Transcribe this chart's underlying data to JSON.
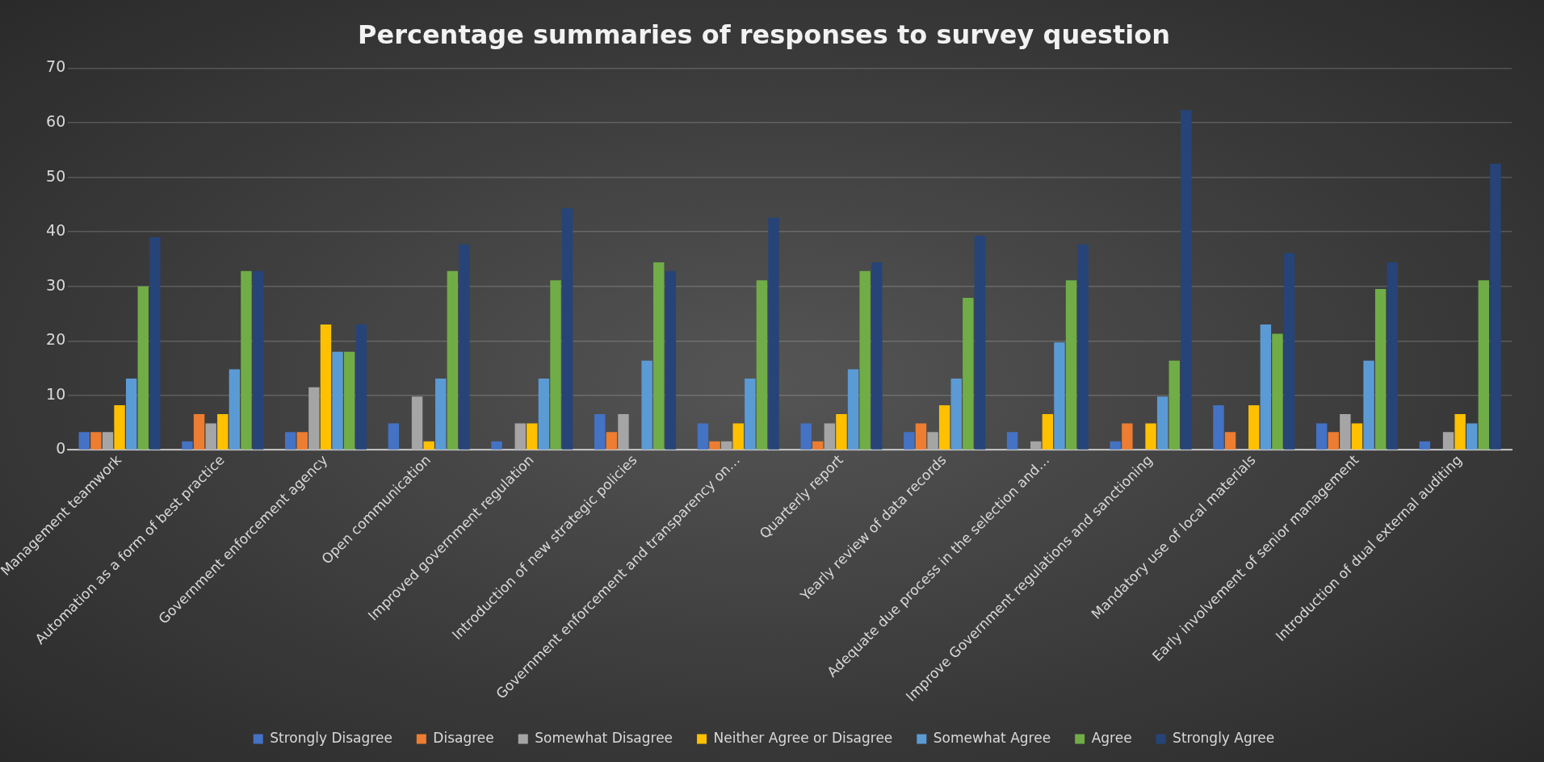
{
  "chart_data": {
    "type": "bar",
    "title": "Percentage summaries of responses to survey question",
    "categories": [
      "Management teamwork",
      "Automation as a form of best practice",
      "Government enforcement agency",
      "Open communication",
      "Improved government regulation",
      "Introduction of new strategic policies",
      "Government enforcement and transparency on…",
      "Quarterly report",
      "Yearly review of data records",
      "Adequate due process in the selection and…",
      "Improve Government regulations and sanctioning",
      "Mandatory use of local materials",
      "Early involvement of senior management",
      "Introduction of dual external auditing"
    ],
    "series": [
      {
        "name": "Strongly Disagree",
        "color": "#4472c4",
        "values": [
          3.3,
          1.6,
          3.3,
          4.9,
          1.6,
          6.6,
          4.9,
          4.9,
          3.3,
          3.3,
          1.6,
          8.2,
          4.9,
          1.6
        ]
      },
      {
        "name": "Disagree",
        "color": "#ed7d31",
        "values": [
          3.3,
          6.6,
          3.3,
          0,
          0,
          3.3,
          1.6,
          1.6,
          4.9,
          0,
          4.9,
          3.3,
          3.3,
          0
        ]
      },
      {
        "name": "Somewhat Disagree",
        "color": "#a5a5a5",
        "values": [
          3.3,
          4.9,
          11.5,
          9.8,
          4.9,
          6.6,
          1.6,
          4.9,
          3.3,
          1.6,
          0,
          0,
          6.6,
          3.3
        ]
      },
      {
        "name": "Neither Agree or Disagree",
        "color": "#ffc000",
        "values": [
          8.2,
          6.6,
          23,
          1.6,
          4.9,
          0,
          4.9,
          6.6,
          8.2,
          6.6,
          4.9,
          8.2,
          4.9,
          6.6
        ]
      },
      {
        "name": "Somewhat Agree",
        "color": "#5b9bd5",
        "values": [
          13.1,
          14.8,
          18,
          13.1,
          13.1,
          16.4,
          13.1,
          14.8,
          13.1,
          19.7,
          9.8,
          23,
          16.4,
          4.9
        ]
      },
      {
        "name": "Agree",
        "color": "#70ad47",
        "values": [
          30,
          32.8,
          18,
          32.8,
          31.1,
          34.4,
          31.1,
          32.8,
          27.9,
          31.1,
          16.4,
          21.3,
          29.5,
          31.1
        ]
      },
      {
        "name": "Strongly Agree",
        "color": "#264478",
        "values": [
          39,
          32.8,
          23,
          37.7,
          44.3,
          32.8,
          42.6,
          34.4,
          39.3,
          37.7,
          62.3,
          36.1,
          34.4,
          52.5
        ]
      }
    ],
    "ylim": [
      0,
      70
    ],
    "yticks": [
      0,
      10,
      20,
      30,
      40,
      50,
      60,
      70
    ],
    "grid": "y",
    "legend": "bottom"
  }
}
